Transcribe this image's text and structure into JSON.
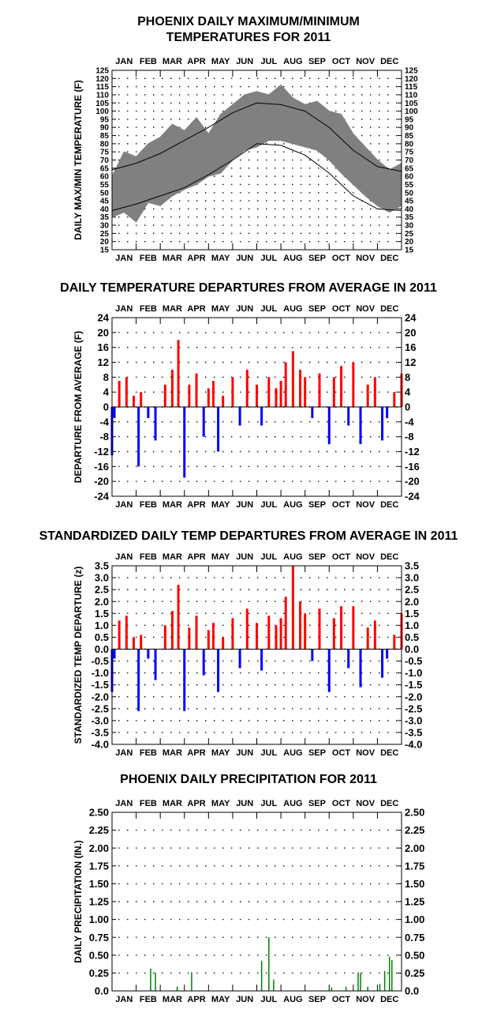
{
  "chart_data": [
    {
      "type": "area",
      "title_lines": [
        "PHOENIX DAILY MAXIMUM/MINIMUM",
        "TEMPERATURES FOR 2011"
      ],
      "ylabel": "DAILY MAX/MIN TEMPERATURE (F)",
      "ylim": [
        15,
        125
      ],
      "yticks": [
        "15",
        "20",
        "25",
        "30",
        "35",
        "40",
        "45",
        "50",
        "55",
        "60",
        "65",
        "70",
        "75",
        "80",
        "85",
        "90",
        "95",
        "100",
        "105",
        "110",
        "115",
        "120",
        "125"
      ],
      "months": [
        "JAN",
        "FEB",
        "MAR",
        "APR",
        "MAY",
        "JUN",
        "JUL",
        "AUG",
        "SEP",
        "OCT",
        "NOV",
        "DEC"
      ],
      "grid": "dotted",
      "series": [
        {
          "kind": "daily-range",
          "color": "#808080",
          "x_month": [
            0.0,
            0.5,
            1.0,
            1.5,
            2.0,
            2.5,
            3.0,
            3.5,
            4.0,
            4.5,
            5.0,
            5.5,
            6.0,
            6.5,
            7.0,
            7.5,
            8.0,
            8.5,
            9.0,
            9.5,
            10.0,
            10.5,
            11.0,
            11.5,
            12.0
          ],
          "high": [
            60,
            75,
            72,
            80,
            84,
            92,
            88,
            96,
            86,
            98,
            104,
            110,
            112,
            110,
            116,
            108,
            104,
            106,
            100,
            98,
            86,
            78,
            70,
            64,
            68
          ],
          "low": [
            35,
            38,
            32,
            44,
            42,
            48,
            52,
            55,
            60,
            62,
            70,
            76,
            78,
            82,
            82,
            80,
            78,
            76,
            70,
            62,
            55,
            48,
            42,
            38,
            42
          ]
        },
        {
          "kind": "normal-high",
          "color": "#000000",
          "x_month": [
            0,
            1,
            2,
            3,
            4,
            5,
            6,
            7,
            8,
            9,
            10,
            11,
            12
          ],
          "values": [
            64,
            68,
            74,
            82,
            90,
            99,
            105,
            104,
            100,
            90,
            76,
            66,
            63
          ]
        },
        {
          "kind": "normal-low",
          "color": "#000000",
          "x_month": [
            0,
            1,
            2,
            3,
            4,
            5,
            6,
            7,
            8,
            9,
            10,
            11,
            12
          ],
          "values": [
            39,
            43,
            48,
            53,
            61,
            70,
            80,
            79,
            73,
            62,
            48,
            40,
            39
          ]
        }
      ]
    },
    {
      "type": "bar",
      "title_lines": [
        "DAILY TEMPERATURE DEPARTURES FROM AVERAGE IN 2011"
      ],
      "ylabel": "DEPARTURE FROM AVERAGE (F)",
      "ylim": [
        -24,
        24
      ],
      "yticks": [
        "-24",
        "-20",
        "-16",
        "-12",
        "-8",
        "-4",
        "0",
        "4",
        "8",
        "12",
        "16",
        "20",
        "24"
      ],
      "months": [
        "JAN",
        "FEB",
        "MAR",
        "APR",
        "MAY",
        "JUN",
        "JUL",
        "AUG",
        "SEP",
        "OCT",
        "NOV",
        "DEC"
      ],
      "grid": "dotted",
      "colors": {
        "positive": "#ff0000",
        "negative": "#0000ff"
      },
      "x_month": [
        0.0,
        0.1,
        0.3,
        0.6,
        0.9,
        1.1,
        1.2,
        1.5,
        1.8,
        2.2,
        2.5,
        2.75,
        3.0,
        3.2,
        3.5,
        3.8,
        4.0,
        4.2,
        4.4,
        4.6,
        5.0,
        5.3,
        5.6,
        6.0,
        6.2,
        6.5,
        6.8,
        7.0,
        7.2,
        7.5,
        7.8,
        8.0,
        8.3,
        8.6,
        9.0,
        9.2,
        9.5,
        9.8,
        10.0,
        10.3,
        10.6,
        10.9,
        11.2,
        11.4,
        11.7,
        12.0
      ],
      "values": [
        -13,
        -3,
        7,
        8,
        3,
        -16,
        4,
        -3,
        -9,
        6,
        10,
        18,
        -19,
        6,
        9,
        -8,
        5,
        7,
        -12,
        3,
        8,
        -5,
        10,
        6,
        -5,
        8,
        5,
        7,
        12,
        15,
        10,
        8,
        -3,
        9,
        -10,
        8,
        11,
        -5,
        12,
        -10,
        6,
        8,
        -9,
        -3,
        4,
        9
      ]
    },
    {
      "type": "bar",
      "title_lines": [
        "STANDARDIZED DAILY TEMP DEPARTURES FROM AVERAGE IN 2011"
      ],
      "ylabel": "STANDARDIZED TEMP DEPARTURE (z)",
      "ylim": [
        -4.0,
        3.5
      ],
      "yticks": [
        "-4.0",
        "-3.5",
        "-3.0",
        "-2.5",
        "-2.0",
        "-1.5",
        "-1.0",
        "-0.5",
        "0.0",
        "0.5",
        "1.0",
        "1.5",
        "2.0",
        "2.5",
        "3.0",
        "3.5"
      ],
      "months": [
        "JAN",
        "FEB",
        "MAR",
        "APR",
        "MAY",
        "JUN",
        "JUL",
        "AUG",
        "SEP",
        "OCT",
        "NOV",
        "DEC"
      ],
      "grid": "dotted",
      "colors": {
        "positive": "#ff0000",
        "negative": "#0000ff"
      },
      "x_month": [
        0.0,
        0.1,
        0.3,
        0.6,
        0.9,
        1.1,
        1.2,
        1.5,
        1.8,
        2.2,
        2.5,
        2.75,
        3.0,
        3.2,
        3.5,
        3.8,
        4.0,
        4.2,
        4.4,
        4.6,
        5.0,
        5.3,
        5.6,
        6.0,
        6.2,
        6.5,
        6.8,
        7.0,
        7.2,
        7.5,
        7.8,
        8.0,
        8.3,
        8.6,
        9.0,
        9.2,
        9.5,
        9.8,
        10.0,
        10.3,
        10.6,
        10.9,
        11.2,
        11.4,
        11.7,
        12.0
      ],
      "values": [
        -1.8,
        -0.4,
        1.2,
        1.4,
        0.5,
        -2.6,
        0.6,
        -0.4,
        -1.3,
        1.0,
        1.6,
        2.7,
        -2.6,
        0.9,
        1.4,
        -1.1,
        0.8,
        1.1,
        -1.8,
        0.5,
        1.3,
        -0.8,
        1.7,
        1.1,
        -0.9,
        1.4,
        1.0,
        1.3,
        2.2,
        3.5,
        2.0,
        1.5,
        -0.5,
        1.7,
        -1.8,
        1.3,
        1.8,
        -0.8,
        1.8,
        -1.6,
        0.9,
        1.2,
        -1.2,
        -0.4,
        0.6,
        1.5
      ]
    },
    {
      "type": "bar",
      "title_lines": [
        "PHOENIX DAILY PRECIPITATION FOR 2011"
      ],
      "ylabel": "DAILY PRECIPITATION (IN.)",
      "ylim": [
        0,
        2.5
      ],
      "yticks": [
        "0.0",
        "0.25",
        "0.50",
        "0.75",
        "1.00",
        "1.25",
        "1.50",
        "1.75",
        "2.00",
        "2.25",
        "2.50"
      ],
      "months": [
        "JAN",
        "FEB",
        "MAR",
        "APR",
        "MAY",
        "JUN",
        "JUL",
        "AUG",
        "SEP",
        "OCT",
        "NOV",
        "DEC"
      ],
      "grid": "dotted",
      "colors": {
        "positive": "#008000"
      },
      "x_month": [
        1.6,
        1.8,
        2.7,
        3.3,
        6.2,
        6.5,
        6.7,
        9.0,
        9.1,
        9.7,
        10.2,
        10.3,
        10.6,
        11.1,
        11.3,
        11.5,
        11.6
      ],
      "values": [
        0.31,
        0.26,
        0.06,
        0.26,
        0.42,
        0.75,
        0.16,
        0.03,
        0.05,
        0.06,
        0.26,
        0.25,
        0.06,
        0.1,
        0.28,
        0.48,
        0.43
      ]
    }
  ]
}
